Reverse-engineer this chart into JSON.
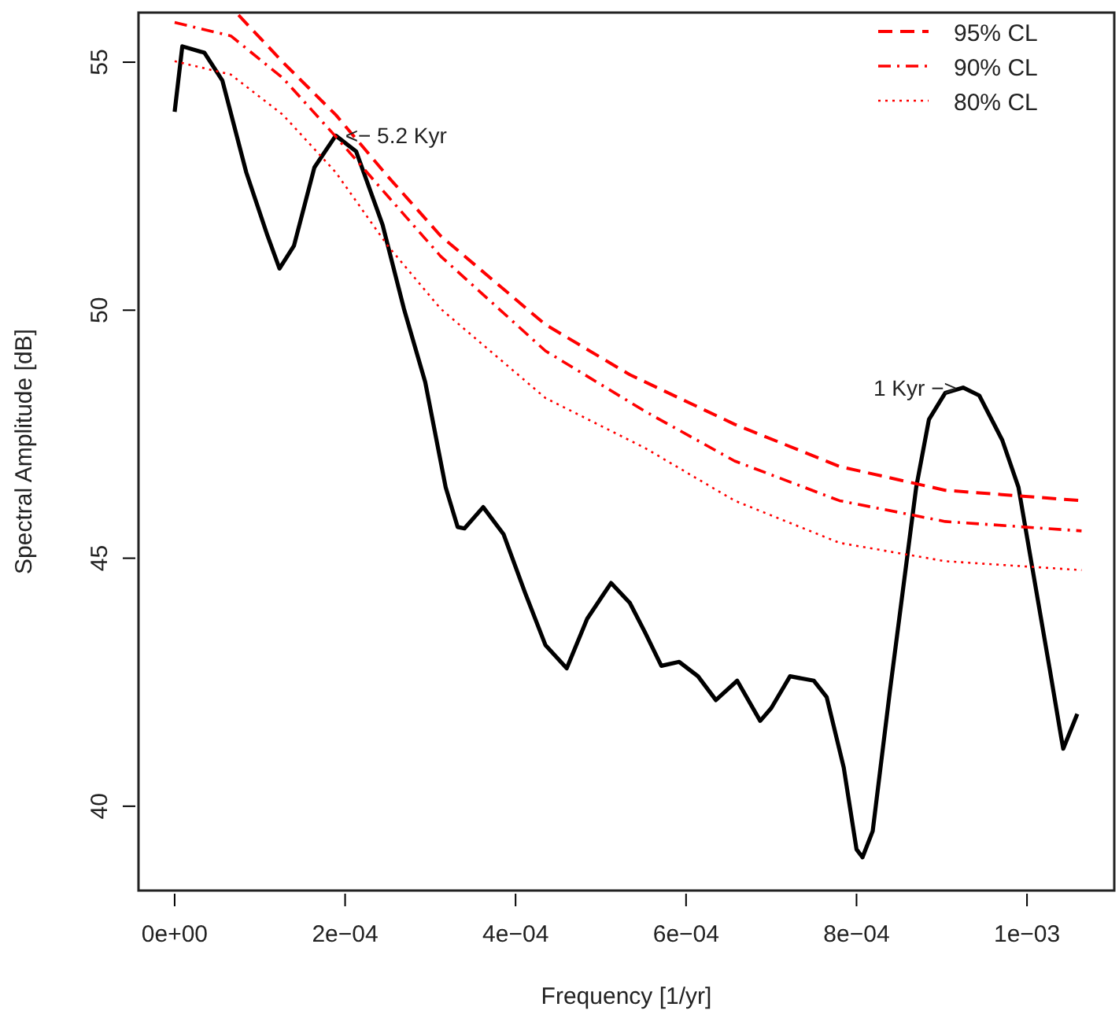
{
  "chart_data": {
    "type": "line",
    "xlabel": "Frequency [1/yr]",
    "ylabel": "Spectral Amplitude [dB]",
    "xlim": [
      -4.24e-05,
      0.0011024
    ],
    "ylim": [
      38.3,
      56.0
    ],
    "xticks": [
      {
        "value": 0,
        "label": "0e+00"
      },
      {
        "value": 0.0002,
        "label": "2e−04"
      },
      {
        "value": 0.0004,
        "label": "4e−04"
      },
      {
        "value": 0.0006,
        "label": "6e−04"
      },
      {
        "value": 0.0008,
        "label": "8e−04"
      },
      {
        "value": 0.001,
        "label": "1e−03"
      }
    ],
    "yticks": [
      40,
      45,
      50,
      55
    ],
    "grid": false,
    "legend": "top right",
    "marker": "none",
    "series": [
      {
        "color": "#000000",
        "line_style": "solid",
        "x": [
          0,
          9e-06,
          3.5e-05,
          5.6e-05,
          8.4e-05,
          0.000109,
          0.000123,
          0.00014,
          0.000164,
          0.000189,
          0.000213,
          0.000244,
          0.000269,
          0.000294,
          0.000318,
          0.000332,
          0.00034,
          0.000362,
          0.000386,
          0.000411,
          0.000435,
          0.00046,
          0.000484,
          0.000512,
          0.000534,
          0.000552,
          0.000571,
          0.000592,
          0.000614,
          0.000635,
          0.00066,
          0.000687,
          0.0007,
          0.000722,
          0.00075,
          0.000765,
          0.000785,
          0.0008,
          0.000807,
          0.000819,
          0.000839,
          0.00087,
          0.000885,
          0.000904,
          0.000925,
          0.000944,
          0.000971,
          0.00099,
          0.001008,
          0.001027,
          0.00104,
          0.0010425,
          0.001059
        ],
        "values": [
          54.0,
          55.32,
          55.19,
          54.63,
          52.78,
          51.5,
          50.84,
          51.3,
          52.88,
          53.52,
          53.2,
          51.72,
          50.03,
          48.55,
          46.43,
          45.63,
          45.6,
          46.03,
          45.48,
          44.31,
          43.25,
          42.78,
          43.78,
          44.5,
          44.1,
          43.5,
          42.83,
          42.91,
          42.62,
          42.14,
          42.53,
          41.72,
          41.98,
          42.62,
          42.53,
          42.2,
          40.78,
          39.13,
          38.97,
          39.5,
          42.3,
          46.43,
          47.8,
          48.33,
          48.44,
          48.28,
          47.38,
          46.43,
          44.63,
          42.73,
          41.4,
          41.16,
          41.86
        ]
      },
      {
        "name": "95% CL",
        "color": "#ff0000",
        "line_style": "dashed",
        "x": [
          7.5e-05,
          0.000127,
          0.000189,
          0.00025,
          0.000312,
          0.000435,
          0.000534,
          0.000657,
          0.00078,
          0.000904,
          0.001064
        ],
        "values": [
          55.95,
          55.0,
          53.94,
          52.7,
          51.5,
          49.71,
          48.7,
          47.7,
          46.85,
          46.37,
          46.16
        ]
      },
      {
        "name": "90% CL",
        "color": "#ff0000",
        "line_style": "dashdot",
        "x": [
          0,
          6.6e-05,
          0.000127,
          0.000189,
          0.00025,
          0.000312,
          0.000435,
          0.000552,
          0.000657,
          0.00078,
          0.000904,
          0.001064
        ],
        "values": [
          55.8,
          55.53,
          54.68,
          53.5,
          52.3,
          51.09,
          49.18,
          47.96,
          46.96,
          46.16,
          45.74,
          45.55
        ]
      },
      {
        "name": "80% CL",
        "color": "#ff0000",
        "line_style": "dotted",
        "x": [
          0,
          6.6e-05,
          0.000127,
          0.000189,
          0.00025,
          0.000312,
          0.000435,
          0.000552,
          0.000657,
          0.00078,
          0.000904,
          0.001064
        ],
        "values": [
          55.02,
          54.75,
          53.94,
          52.78,
          51.3,
          50.03,
          48.23,
          47.22,
          46.16,
          45.31,
          44.94,
          44.76
        ]
      }
    ],
    "annotations": [
      {
        "text": "<− 5.2 Kyr",
        "x": 0.000189,
        "y": 53.52
      },
      {
        "text": "1 Kyr −>",
        "x": 0.000925,
        "y": 48.44
      }
    ]
  }
}
